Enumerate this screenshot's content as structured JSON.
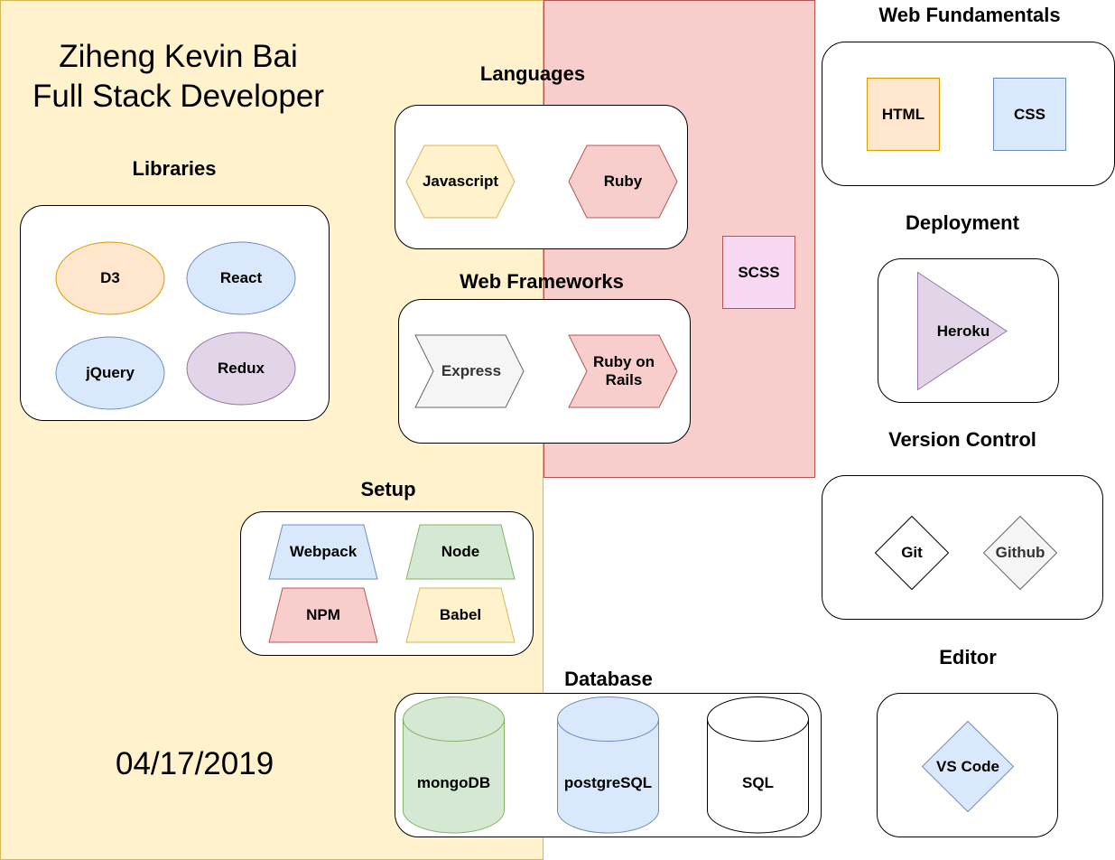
{
  "header": {
    "name": "Ziheng Kevin Bai",
    "role": "Full Stack Developer",
    "date": "04/17/2019"
  },
  "sections": {
    "libraries": {
      "title": "Libraries",
      "items": [
        "D3",
        "React",
        "jQuery",
        "Redux"
      ]
    },
    "languages": {
      "title": "Languages",
      "items": [
        "Javascript",
        "Ruby"
      ]
    },
    "web_frameworks": {
      "title": "Web Frameworks",
      "items": [
        "Express",
        "Ruby on Rails"
      ]
    },
    "setup": {
      "title": "Setup",
      "items": [
        "Webpack",
        "Node",
        "NPM",
        "Babel"
      ]
    },
    "database": {
      "title": "Database",
      "items": [
        "mongoDB",
        "postgreSQL",
        "SQL"
      ]
    },
    "web_fundamentals": {
      "title": "Web Fundamentals",
      "items": [
        "HTML",
        "CSS"
      ]
    },
    "standalone": {
      "items": [
        "SCSS"
      ]
    },
    "deployment": {
      "title": "Deployment",
      "items": [
        "Heroku"
      ]
    },
    "version_control": {
      "title": "Version Control",
      "items": [
        "Git",
        "Github"
      ]
    },
    "editor": {
      "title": "Editor",
      "items": [
        "VS Code"
      ]
    }
  },
  "colors": {
    "yellow_fill": "#fff2cc",
    "yellow_stroke": "#d6b656",
    "red_fill": "#f8cecc",
    "red_stroke": "#b85450",
    "orange_fill": "#ffe6cc",
    "orange_stroke": "#d79b00",
    "blue_fill": "#dae8fc",
    "blue_stroke": "#6c8ebf",
    "purple_fill": "#e1d5e7",
    "purple_stroke": "#9673a6",
    "green_fill": "#d5e8d4",
    "green_stroke": "#82b366",
    "gray_fill": "#f5f5f5",
    "gray_stroke": "#666666",
    "pink_fill": "#f8d7f2",
    "pink_stroke": "#b85450"
  }
}
